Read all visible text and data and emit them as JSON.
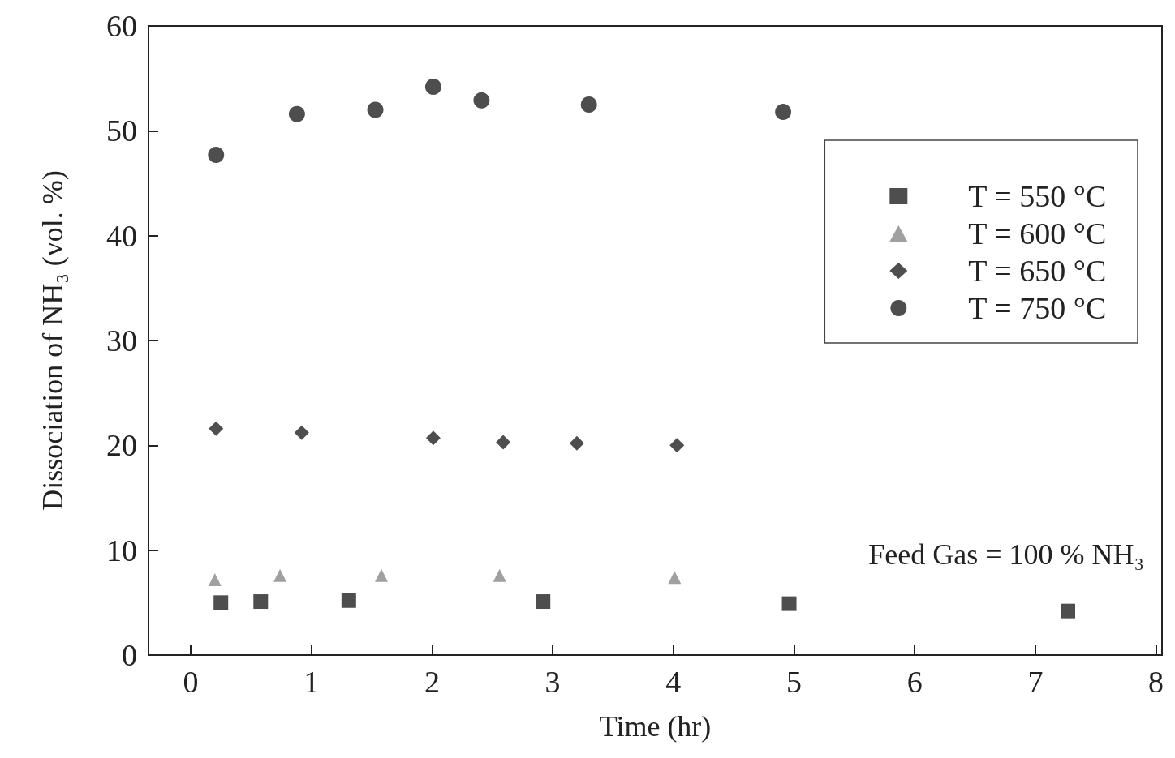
{
  "chart_data": {
    "type": "scatter",
    "xlabel": "Time (hr)",
    "ylabel": "Dissociation of NH₃ (vol. %)",
    "xlim": [
      -0.35,
      8.05
    ],
    "xticks": [
      0,
      1,
      2,
      3,
      4,
      5,
      6,
      7,
      8
    ],
    "ylim": [
      0,
      60
    ],
    "yticks": [
      0,
      10,
      20,
      30,
      40,
      50,
      60
    ],
    "grid": false,
    "legend": "top right",
    "annotations": [
      "Feed Gas = 100 % NH₃"
    ],
    "series": [
      {
        "name": "T = 550 °C",
        "color": "#222222",
        "marker": "square",
        "x": [
          0.25,
          0.58,
          1.31,
          2.92,
          4.96,
          7.27
        ],
        "values": [
          5.0,
          5.1,
          5.2,
          5.1,
          4.9,
          4.2
        ]
      },
      {
        "name": "T = 600 °C",
        "color": "#888888",
        "marker": "triangle",
        "x": [
          0.2,
          0.74,
          1.58,
          2.56,
          4.01
        ],
        "values": [
          7.2,
          7.6,
          7.6,
          7.6,
          7.4
        ]
      },
      {
        "name": "T = 650 °C",
        "color": "#222222",
        "marker": "diamond",
        "x": [
          0.21,
          0.92,
          2.01,
          2.59,
          3.2,
          4.03
        ],
        "values": [
          21.6,
          21.2,
          20.7,
          20.3,
          20.2,
          20.0
        ]
      },
      {
        "name": "T = 750 °C",
        "color": "#222222",
        "marker": "circle",
        "x": [
          0.21,
          0.88,
          1.53,
          2.01,
          2.41,
          3.3,
          4.91
        ],
        "values": [
          47.7,
          51.6,
          52.0,
          54.2,
          52.9,
          52.5,
          51.8
        ]
      }
    ]
  }
}
